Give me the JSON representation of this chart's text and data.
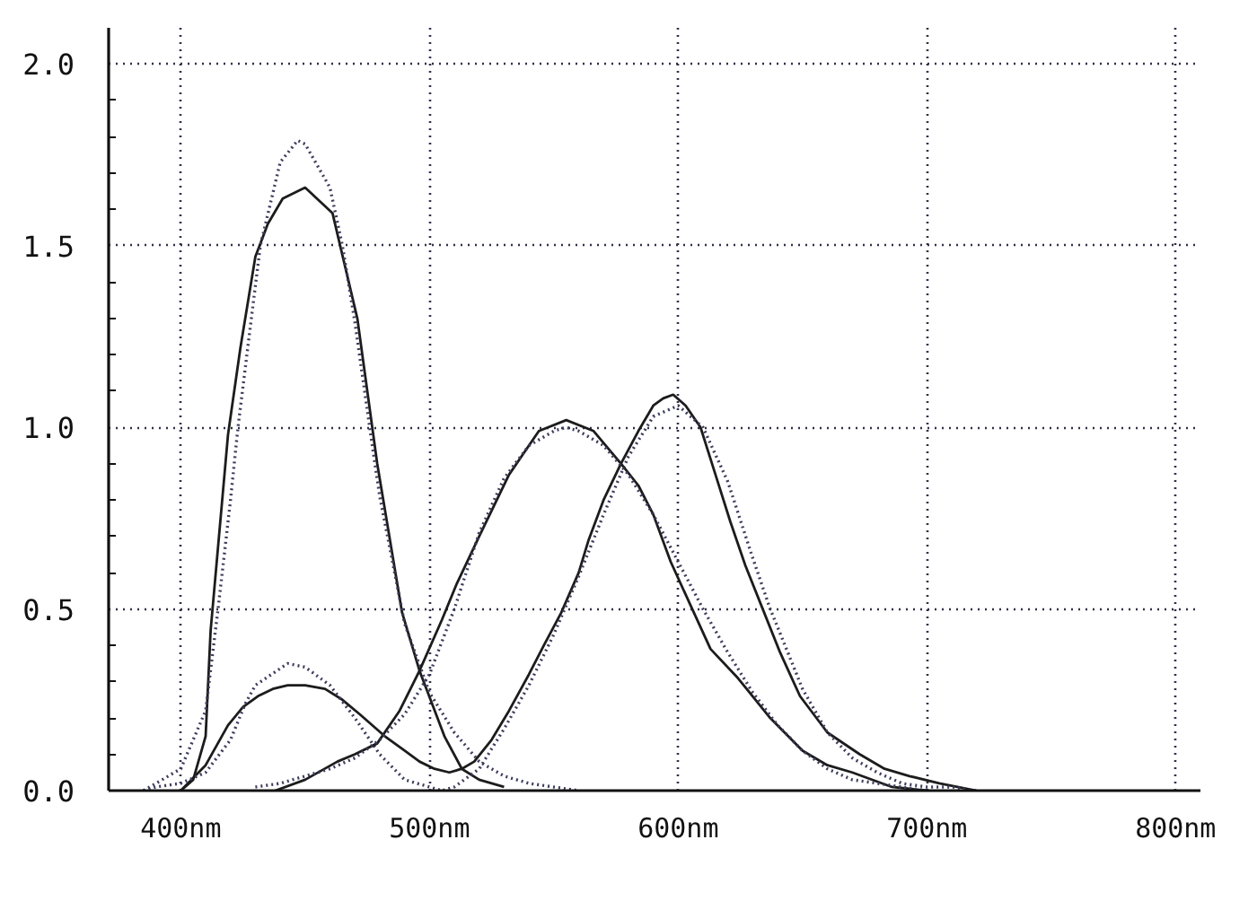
{
  "chart_data": {
    "type": "line",
    "xlim": [
      371,
      810
    ],
    "ylim": [
      0,
      2.1
    ],
    "xticks": [
      {
        "value": 400,
        "label": "400nm"
      },
      {
        "value": 500,
        "label": "500nm"
      },
      {
        "value": 600,
        "label": "600nm"
      },
      {
        "value": 700,
        "label": "700nm"
      },
      {
        "value": 800,
        "label": "800nm"
      }
    ],
    "yticks": [
      {
        "value": 0,
        "label": "0.0"
      },
      {
        "value": 0.1,
        "label": null
      },
      {
        "value": 0.2,
        "label": null
      },
      {
        "value": 0.3,
        "label": null
      },
      {
        "value": 0.4,
        "label": null
      },
      0.5,
      {
        "value": 0.6,
        "label": null
      },
      {
        "value": 0.7,
        "label": null
      },
      {
        "value": 0.8,
        "label": null
      },
      {
        "value": 0.9,
        "label": null
      },
      {
        "value": 1.0,
        "label": "1.0"
      },
      {
        "value": 1.1,
        "label": null
      },
      {
        "value": 1.2,
        "label": null
      },
      {
        "value": 1.3,
        "label": null
      },
      {
        "value": 1.4,
        "label": null
      },
      1.5,
      {
        "value": 1.6,
        "label": null
      },
      {
        "value": 1.7,
        "label": null
      },
      {
        "value": 1.8,
        "label": null
      },
      {
        "value": 1.9,
        "label": null
      },
      {
        "value": 2.0,
        "label": "2.0"
      }
    ],
    "grid": true,
    "series": [
      {
        "color": "#1c1c1c",
        "line_style": "solid",
        "x": [
          400,
          405,
          410,
          412,
          419,
          424,
          430,
          435,
          441,
          450,
          461,
          471,
          479,
          489,
          496,
          506,
          513,
          520,
          530
        ],
        "values": [
          0,
          0.03,
          0.15,
          0.44,
          0.98,
          1.22,
          1.47,
          1.56,
          1.63,
          1.66,
          1.59,
          1.3,
          0.9,
          0.49,
          0.33,
          0.15,
          0.06,
          0.03,
          0.01
        ]
      },
      {
        "color": "#3c3c5c",
        "line_style": "dotted",
        "x": [
          385,
          390,
          400,
          410,
          415,
          420,
          423,
          430,
          432,
          440,
          447,
          450,
          460,
          465,
          470,
          477,
          480,
          490,
          500,
          510,
          520,
          530,
          540,
          550,
          560
        ],
        "values": [
          0,
          0.02,
          0.06,
          0.22,
          0.5,
          0.8,
          1.0,
          1.39,
          1.5,
          1.73,
          1.79,
          1.78,
          1.66,
          1.5,
          1.29,
          0.95,
          0.81,
          0.46,
          0.27,
          0.16,
          0.08,
          0.04,
          0.02,
          0.01,
          0
        ]
      },
      {
        "color": "#1c1c1c",
        "line_style": "solid",
        "x": [
          400,
          410,
          419,
          425,
          431,
          437,
          443,
          450,
          458,
          465,
          472,
          482,
          490,
          496,
          502,
          508,
          513,
          518,
          525,
          532,
          540,
          546,
          553,
          560,
          564,
          570,
          577,
          584,
          590,
          594,
          598,
          603,
          609,
          615,
          621,
          627,
          634,
          641,
          649,
          660,
          673,
          683,
          693,
          705,
          720
        ],
        "values": [
          0,
          0.07,
          0.18,
          0.23,
          0.26,
          0.28,
          0.29,
          0.29,
          0.28,
          0.25,
          0.21,
          0.15,
          0.11,
          0.08,
          0.06,
          0.05,
          0.06,
          0.08,
          0.14,
          0.22,
          0.32,
          0.4,
          0.49,
          0.6,
          0.69,
          0.8,
          0.9,
          0.99,
          1.06,
          1.08,
          1.09,
          1.06,
          1.0,
          0.87,
          0.74,
          0.62,
          0.5,
          0.38,
          0.26,
          0.16,
          0.1,
          0.06,
          0.04,
          0.02,
          0
        ]
      },
      {
        "color": "#3c3c5c",
        "line_style": "dotted",
        "x": [
          385,
          390,
          400,
          410,
          420,
          426,
          430,
          443,
          450,
          460,
          470,
          480,
          490,
          500,
          505,
          510,
          520,
          530,
          540,
          550,
          560,
          570,
          580,
          590,
          600,
          610,
          620,
          630,
          637,
          640,
          650,
          660,
          670,
          680,
          690,
          700,
          710,
          720
        ],
        "values": [
          0,
          0.01,
          0.02,
          0.05,
          0.14,
          0.24,
          0.29,
          0.35,
          0.34,
          0.29,
          0.2,
          0.1,
          0.03,
          0.01,
          0,
          0.01,
          0.06,
          0.17,
          0.29,
          0.43,
          0.59,
          0.76,
          0.92,
          1.03,
          1.06,
          1.0,
          0.85,
          0.64,
          0.5,
          0.45,
          0.28,
          0.16,
          0.09,
          0.05,
          0.02,
          0.01,
          0.01,
          0
        ]
      },
      {
        "color": "#1c1c1c",
        "line_style": "solid",
        "x": [
          438,
          450,
          463,
          470,
          479,
          488,
          496,
          505,
          511,
          520,
          532,
          544,
          555,
          566,
          577,
          584,
          590,
          597,
          605,
          613,
          624,
          637,
          650,
          660,
          670,
          686,
          700
        ],
        "values": [
          0,
          0.03,
          0.08,
          0.1,
          0.13,
          0.22,
          0.33,
          0.47,
          0.57,
          0.7,
          0.87,
          0.99,
          1.02,
          0.99,
          0.9,
          0.84,
          0.76,
          0.63,
          0.51,
          0.39,
          0.31,
          0.2,
          0.11,
          0.07,
          0.05,
          0.01,
          0
        ]
      },
      {
        "color": "#3c3c5c",
        "line_style": "dotted",
        "x": [
          430,
          440,
          450,
          460,
          470,
          480,
          490,
          500,
          510,
          520,
          530,
          540,
          550,
          555,
          560,
          570,
          580,
          590,
          600,
          610,
          620,
          630,
          640,
          650,
          660,
          670,
          680,
          690,
          700
        ],
        "values": [
          0.01,
          0.02,
          0.04,
          0.06,
          0.09,
          0.14,
          0.21,
          0.32,
          0.5,
          0.71,
          0.86,
          0.95,
          0.99,
          1.0,
          0.99,
          0.95,
          0.87,
          0.76,
          0.63,
          0.5,
          0.38,
          0.27,
          0.18,
          0.11,
          0.06,
          0.03,
          0.02,
          0.01,
          0
        ]
      }
    ]
  }
}
